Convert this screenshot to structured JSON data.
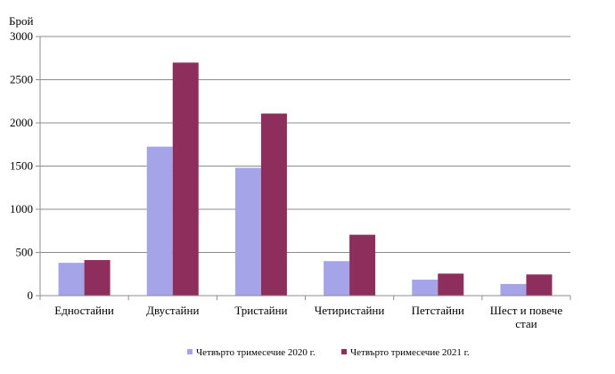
{
  "chart_data": {
    "type": "bar",
    "ylabel": "Брой",
    "categories": [
      [
        "Едностайни"
      ],
      [
        "Двустайни"
      ],
      [
        "Тристайни"
      ],
      [
        "Четиристайни"
      ],
      [
        "Петстайни"
      ],
      [
        "Шест и повече",
        "стаи"
      ]
    ],
    "series": [
      {
        "name": "Четвърто тримесечие 2020 г.",
        "color": "#a6a4e8",
        "values": [
          380,
          1725,
          1480,
          400,
          185,
          135
        ]
      },
      {
        "name": "Четвърто тримесечие 2021 г.",
        "color": "#8e2e5c",
        "values": [
          412,
          2698,
          2108,
          705,
          255,
          245
        ]
      }
    ],
    "ylim": [
      0,
      3000
    ],
    "yticks": [
      0,
      500,
      1000,
      1500,
      2000,
      2500,
      3000
    ],
    "grid": true,
    "legend_position": "bottom"
  }
}
